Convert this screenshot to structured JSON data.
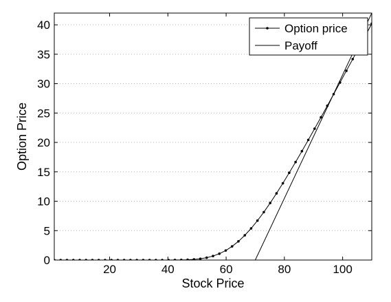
{
  "chart_data": {
    "type": "line",
    "title": "",
    "xlabel": "Stock Price",
    "ylabel": "Option Price",
    "xlim": [
      1,
      110
    ],
    "ylim": [
      0,
      42
    ],
    "xticks": [
      20,
      40,
      60,
      80,
      100
    ],
    "yticks": [
      0,
      5,
      10,
      15,
      20,
      25,
      30,
      35,
      40
    ],
    "grid": "horizontal dotted",
    "legend_position": "top-right",
    "colors": {
      "line": "#000000",
      "background": "#ffffff",
      "grid": "#b0b0b0"
    },
    "series": [
      {
        "name": "Option price",
        "marker": "dot",
        "x": [
          1,
          3.18,
          5.36,
          7.54,
          9.72,
          11.9,
          14.08,
          16.26,
          18.44,
          20.62,
          22.8,
          24.98,
          27.16,
          29.34,
          31.52,
          33.7,
          35.88,
          38.06,
          40.24,
          42.42,
          44.6,
          46.78,
          48.96,
          51.14,
          53.32,
          55.5,
          57.68,
          59.86,
          62.04,
          64.22,
          66.4,
          68.58,
          70.76,
          72.94,
          75.12,
          77.3,
          79.48,
          81.66,
          83.84,
          86.02,
          88.2,
          90.38,
          92.56,
          94.74,
          96.92,
          99.1,
          101.28,
          103.46,
          105.64,
          107.82,
          110
        ],
        "values": [
          0,
          0,
          0,
          0,
          0,
          0,
          0,
          0,
          0,
          0,
          0,
          0,
          0,
          0,
          0,
          0,
          0,
          0,
          0,
          0.01,
          0.02,
          0.05,
          0.11,
          0.22,
          0.4,
          0.68,
          1.08,
          1.62,
          2.32,
          3.18,
          4.2,
          5.38,
          6.7,
          8.14,
          9.7,
          11.34,
          13.06,
          14.84,
          16.66,
          18.52,
          20.42,
          22.34,
          24.28,
          26.24,
          28.21,
          30.19,
          32.18,
          34.17,
          36.16,
          38.15,
          40.2
        ]
      },
      {
        "name": "Payoff",
        "marker": "none",
        "x": [
          1,
          70,
          110
        ],
        "values": [
          0,
          0,
          42
        ]
      }
    ]
  }
}
